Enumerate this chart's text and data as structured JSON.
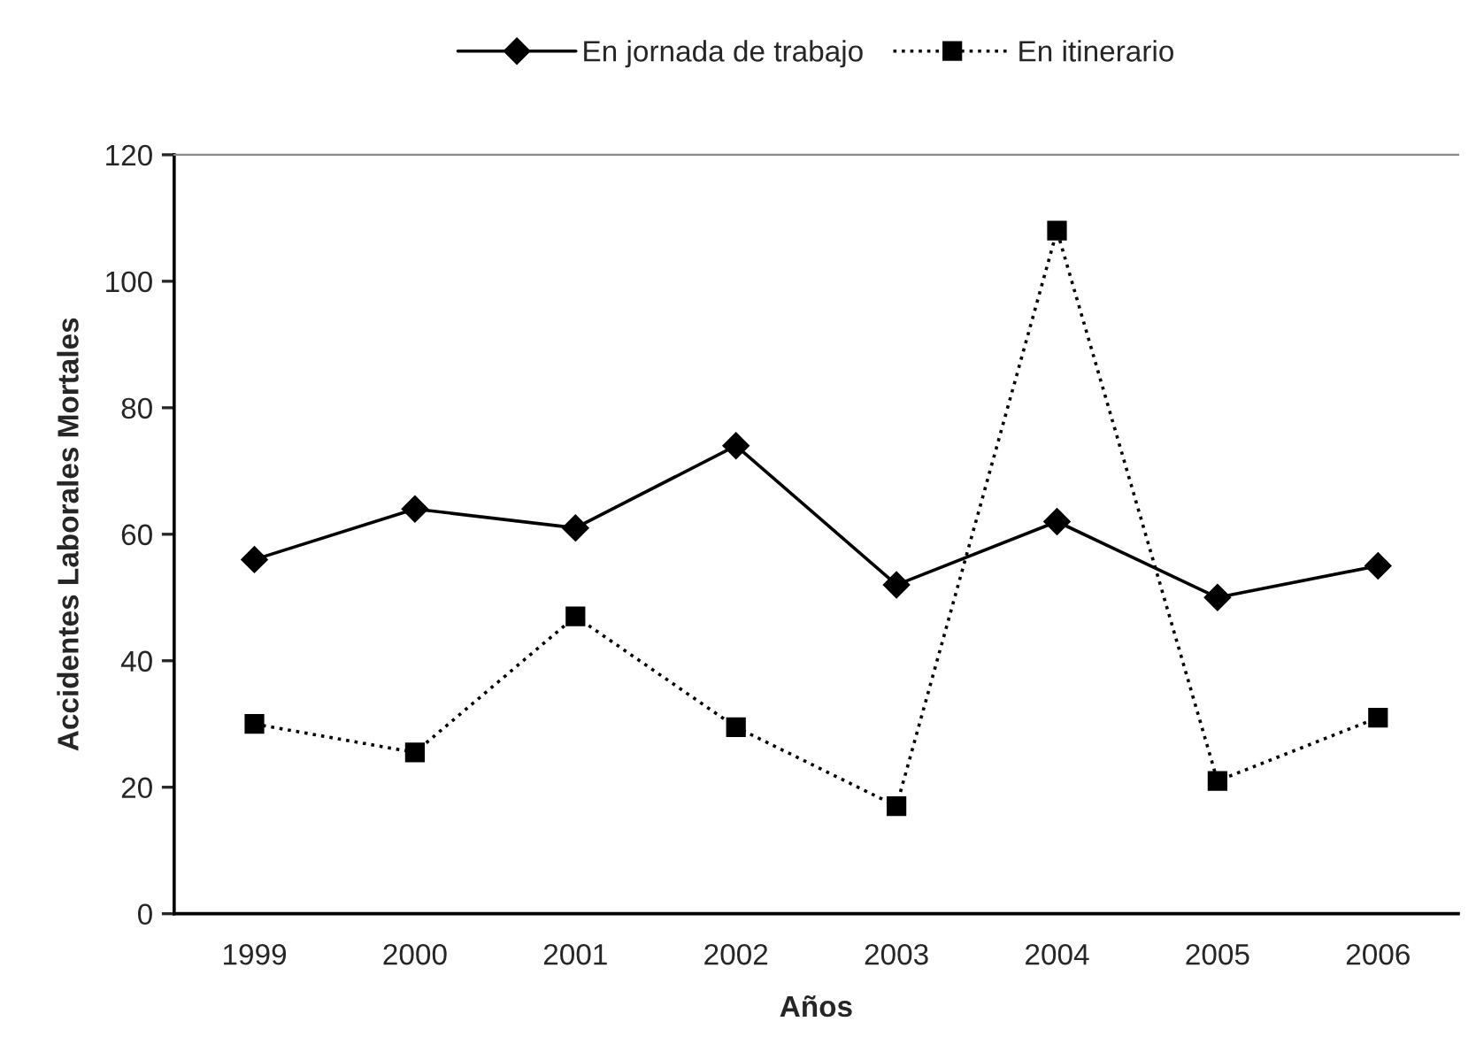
{
  "chart_data": {
    "type": "line",
    "xlabel": "Años",
    "ylabel": "Accidentes Laborales Mortales",
    "categories": [
      "1999",
      "2000",
      "2001",
      "2002",
      "2003",
      "2004",
      "2005",
      "2006"
    ],
    "series": [
      {
        "name": "En jornada de trabajo",
        "color": "#000000",
        "values": [
          56,
          64,
          61,
          74,
          52,
          62,
          50,
          55
        ],
        "marker": "diamond",
        "line_style": "solid"
      },
      {
        "name": "En itinerario",
        "color": "#000000",
        "values": [
          30,
          25.5,
          47,
          29.5,
          17,
          108,
          21,
          31
        ],
        "marker": "square",
        "line_style": "dotted"
      }
    ],
    "ylim": [
      0,
      120
    ],
    "yticks": [
      0,
      20,
      40,
      60,
      80,
      100,
      120
    ],
    "grid": false,
    "legend": "top"
  }
}
